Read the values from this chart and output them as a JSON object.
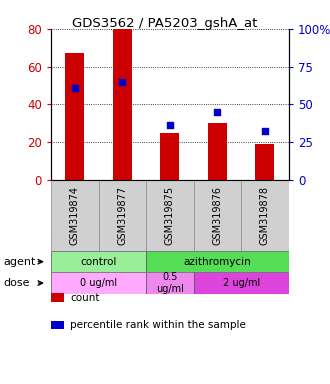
{
  "title": "GDS3562 / PA5203_gshA_at",
  "samples": [
    "GSM319874",
    "GSM319877",
    "GSM319875",
    "GSM319876",
    "GSM319878"
  ],
  "counts": [
    67,
    80,
    25,
    30,
    19
  ],
  "percentiles": [
    61,
    65,
    36,
    45,
    32
  ],
  "left_ylim": [
    0,
    80
  ],
  "right_ylim": [
    0,
    100
  ],
  "left_yticks": [
    0,
    20,
    40,
    60,
    80
  ],
  "right_yticks": [
    0,
    25,
    50,
    75,
    100
  ],
  "right_yticklabels": [
    "0",
    "25",
    "50",
    "75",
    "100%"
  ],
  "bar_color": "#cc0000",
  "dot_color": "#0000cc",
  "agent_row": [
    {
      "label": "control",
      "span": [
        0,
        2
      ],
      "color": "#99ee99"
    },
    {
      "label": "azithromycin",
      "span": [
        2,
        5
      ],
      "color": "#55dd55"
    }
  ],
  "dose_row": [
    {
      "label": "0 ug/ml",
      "span": [
        0,
        2
      ],
      "color": "#ffaaff"
    },
    {
      "label": "0.5\nug/ml",
      "span": [
        2,
        3
      ],
      "color": "#ee88ee"
    },
    {
      "label": "2 ug/ml",
      "span": [
        3,
        5
      ],
      "color": "#dd44dd"
    }
  ],
  "left_ylabel_color": "#cc0000",
  "right_ylabel_color": "#0000cc",
  "legend_items": [
    {
      "color": "#cc0000",
      "label": "count"
    },
    {
      "color": "#0000cc",
      "label": "percentile rank within the sample"
    }
  ],
  "agent_label": "agent",
  "dose_label": "dose",
  "bg_color": "#ffffff",
  "bar_width": 0.4,
  "dot_size": 25
}
